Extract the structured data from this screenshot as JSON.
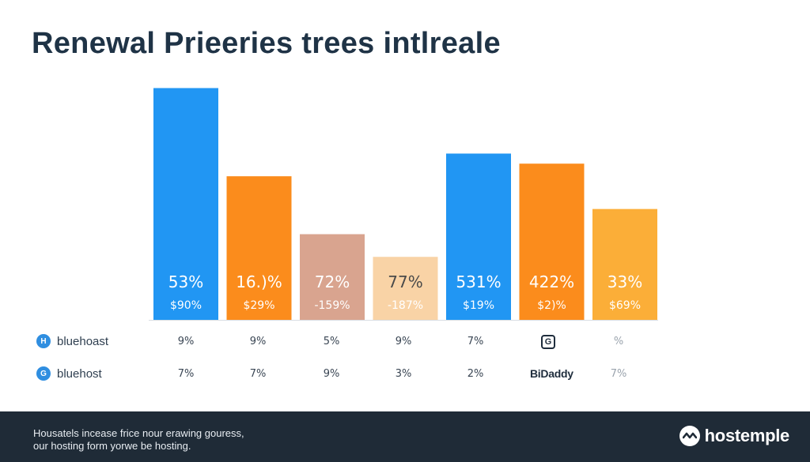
{
  "title": "Renewal Prieeries trees intlreale",
  "chart_data": {
    "type": "bar",
    "title": "Renewal Prieeries trees intlreale",
    "ylim": [
      0,
      100
    ],
    "bars": [
      {
        "value": 92,
        "label_pct": "53%",
        "label_price": "$90%",
        "color": "#2196f3"
      },
      {
        "value": 57,
        "label_pct": "16.)%",
        "label_price": "$29%",
        "color": "#fb8c1c"
      },
      {
        "value": 34,
        "label_pct": "72%",
        "label_price": "-159%",
        "color": "#d9a48f"
      },
      {
        "value": 25,
        "label_pct": "77%",
        "label_price": "-187%",
        "color": "#f9d3a6"
      },
      {
        "value": 66,
        "label_pct": "531%",
        "label_price": "$19%",
        "color": "#2196f3"
      },
      {
        "value": 62,
        "label_pct": "422%",
        "label_price": "$2)%",
        "color": "#fb8c1c"
      },
      {
        "value": 44,
        "label_pct": "33%",
        "label_price": "$69%",
        "color": "#fbae38"
      }
    ]
  },
  "table": {
    "rows": [
      {
        "icon": "H",
        "label": "bluehoast",
        "cells": [
          "9%",
          "9%",
          "5%",
          "9%",
          "7%",
          "",
          "%"
        ]
      },
      {
        "icon": "G",
        "label": "bluehost",
        "cells": [
          "7%",
          "7%",
          "9%",
          "3%",
          "2%",
          "",
          "7%"
        ]
      }
    ],
    "godaddy_text": "BiDaddy"
  },
  "footer": {
    "line1": "Housatels incease frice nour erawing gouress,",
    "line2": "our hosting form yorwe be hosting.",
    "brand": "hostemple"
  },
  "colors": {
    "footer_bg": "#1f2b37",
    "title": "#1f3346"
  }
}
